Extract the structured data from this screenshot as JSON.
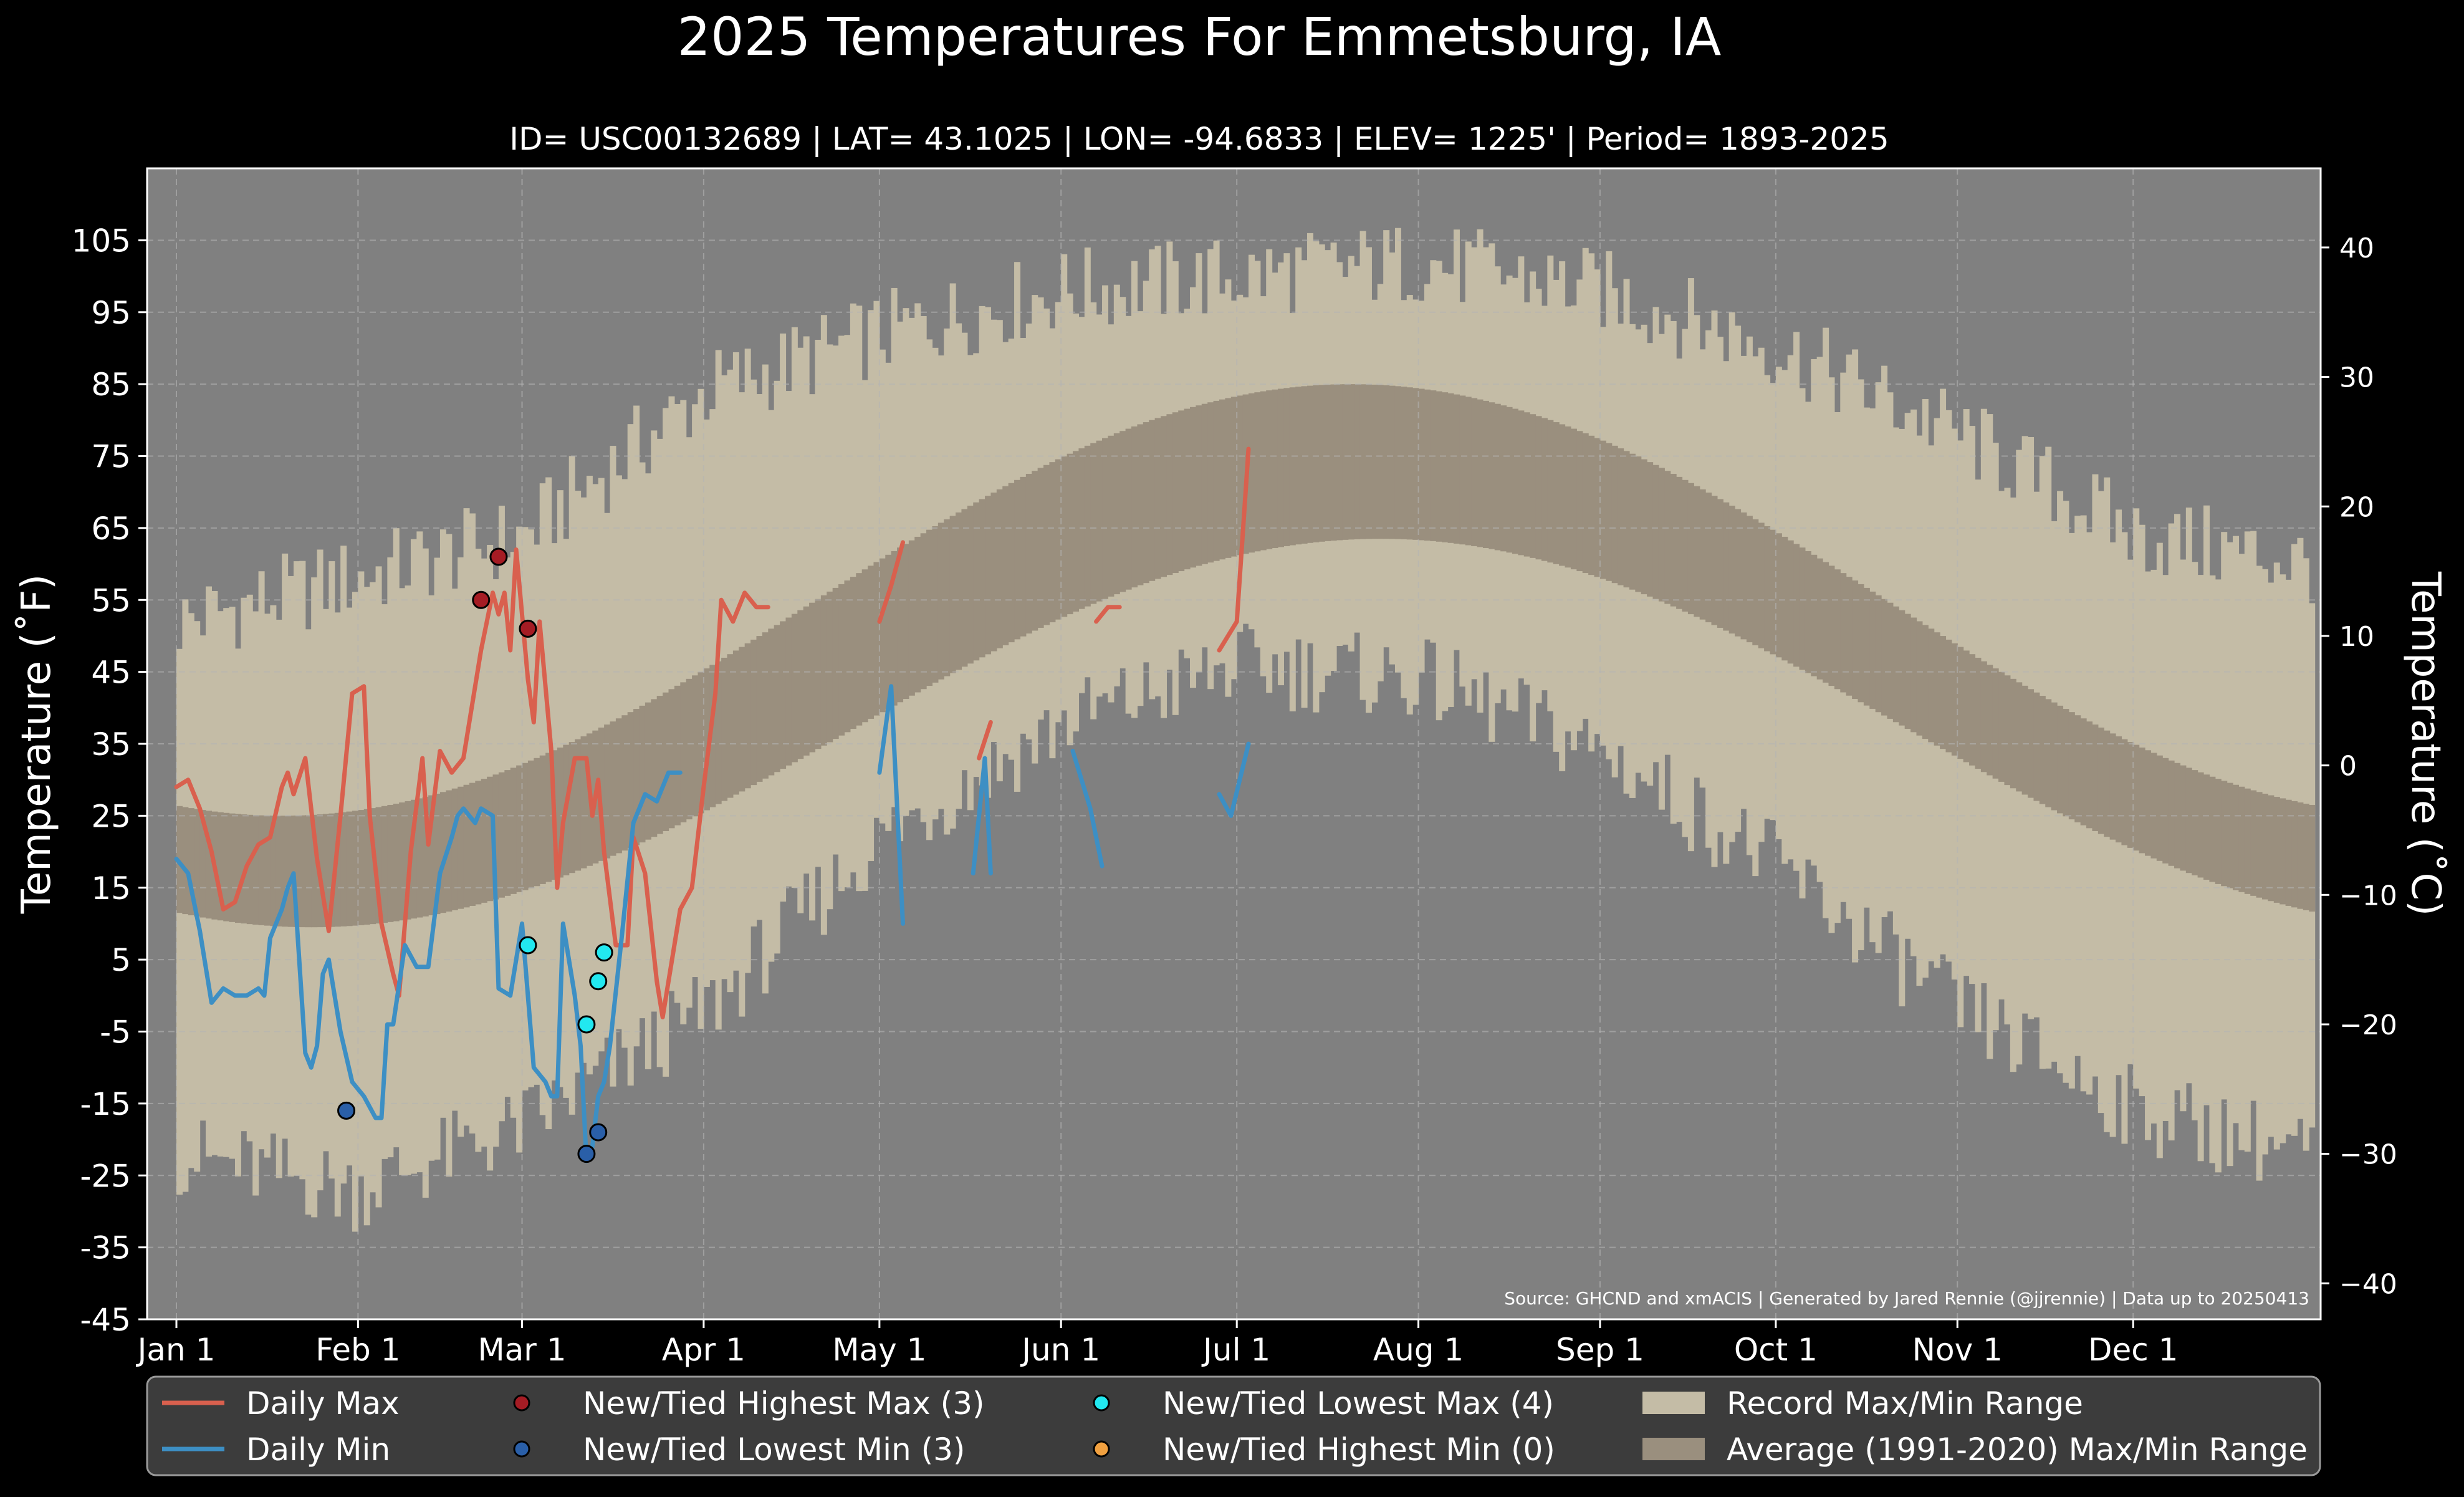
{
  "chart_data": {
    "type": "line",
    "title": "2025 Temperatures For Emmetsburg, IA",
    "subtitle": "ID= USC00132689 | LAT= 43.1025 | LON= -94.6833 | ELEV= 1225' | Period= 1893-2025",
    "ylabel_left": "Temperature ( $^\\circ$F)",
    "ylabel_left_display": "Temperature (˚F)",
    "ylabel_right_display": "Temperature (˚C)",
    "ylim_f": [
      -45,
      115
    ],
    "yticks_f": [
      "105",
      "95",
      "85",
      "75",
      "65",
      "55",
      "45",
      "35",
      "25",
      "15",
      "5",
      "-5",
      "-15",
      "-25",
      "-35",
      "-45"
    ],
    "yticks_c": [
      "40",
      "30",
      "20",
      "10",
      "0",
      "−10",
      "−20",
      "−30",
      "−40"
    ],
    "xticks": [
      "Jan 1",
      "Feb 1",
      "Mar 1",
      "Apr 1",
      "May 1",
      "Jun 1",
      "Jul 1",
      "Aug 1",
      "Sep 1",
      "Oct 1",
      "Nov 1",
      "Dec 1"
    ],
    "xlim_days": [
      -5,
      366
    ],
    "source_note": "Source: GHCND and xmACIS | Generated by Jared Rennie (@jjrennie) | Data up to 20250413",
    "grid": true,
    "legend": {
      "placement": "bottom",
      "entries": [
        {
          "label": "Daily Max",
          "kind": "line",
          "color": "#d9604e"
        },
        {
          "label": "Daily Min",
          "kind": "line",
          "color": "#3d8fc4"
        },
        {
          "label": "New/Tied Highest Max (3)",
          "kind": "marker",
          "color": "#a51c24"
        },
        {
          "label": "New/Tied Lowest Min (3)",
          "kind": "marker",
          "color": "#2a5fa8"
        },
        {
          "label": "New/Tied Lowest Max (4)",
          "kind": "marker",
          "color": "#22e8f0"
        },
        {
          "label": "New/Tied Highest Min (0)",
          "kind": "marker",
          "color": "#f0a040"
        },
        {
          "label": "Record Max/Min Range",
          "kind": "patch",
          "color": "#c4bca6"
        },
        {
          "label": "Average (1991-2020) Max/Min Range",
          "kind": "patch",
          "color": "#9a8f7e"
        }
      ]
    },
    "colors": {
      "background": "#000000",
      "plot_bg": "#808080",
      "record_range": "#c4bca6",
      "normal_range": "#9a8f7e",
      "daily_max": "#d9604e",
      "daily_min": "#3d8fc4",
      "grid": "#b4b4b4"
    },
    "record_high_anchors": [
      [
        0,
        52
      ],
      [
        30,
        58
      ],
      [
        59,
        64
      ],
      [
        90,
        84
      ],
      [
        120,
        92
      ],
      [
        151,
        98
      ],
      [
        181,
        100
      ],
      [
        212,
        102
      ],
      [
        243,
        98
      ],
      [
        273,
        90
      ],
      [
        304,
        78
      ],
      [
        334,
        64
      ],
      [
        364,
        60
      ]
    ],
    "record_low_anchors": [
      [
        0,
        -22
      ],
      [
        30,
        -27
      ],
      [
        59,
        -18
      ],
      [
        90,
        -2
      ],
      [
        120,
        22
      ],
      [
        151,
        38
      ],
      [
        181,
        46
      ],
      [
        212,
        44
      ],
      [
        243,
        34
      ],
      [
        273,
        18
      ],
      [
        304,
        -2
      ],
      [
        334,
        -16
      ],
      [
        364,
        -22
      ]
    ],
    "normal_high_formula": "55 + 30*cos(2*pi*(d-200)/365)",
    "normal_low_formula": "36.5 + 27*cos(2*pi*(d-205)/365)",
    "daily_max_segments": [
      [
        [
          0,
          29
        ],
        [
          2,
          30
        ],
        [
          4,
          26
        ],
        [
          6,
          20
        ],
        [
          8,
          12
        ],
        [
          10,
          13
        ],
        [
          12,
          18
        ],
        [
          14,
          21
        ],
        [
          16,
          22
        ],
        [
          18,
          29
        ],
        [
          19,
          31
        ],
        [
          20,
          28
        ],
        [
          22,
          33
        ],
        [
          24,
          19
        ],
        [
          26,
          9
        ],
        [
          28,
          25
        ],
        [
          30,
          42
        ],
        [
          32,
          43
        ],
        [
          33,
          25
        ],
        [
          35,
          10
        ],
        [
          37,
          3
        ],
        [
          38,
          0
        ],
        [
          39,
          10
        ],
        [
          40,
          20
        ],
        [
          42,
          33
        ],
        [
          43,
          21
        ],
        [
          45,
          34
        ],
        [
          47,
          31
        ],
        [
          49,
          33
        ],
        [
          52,
          48
        ],
        [
          53,
          52
        ],
        [
          54,
          56
        ],
        [
          55,
          53
        ],
        [
          56,
          56
        ],
        [
          57,
          48
        ],
        [
          58,
          62
        ],
        [
          60,
          44
        ],
        [
          61,
          38
        ],
        [
          62,
          52
        ],
        [
          64,
          34
        ],
        [
          65,
          15
        ],
        [
          66,
          24
        ],
        [
          68,
          33
        ],
        [
          70,
          33
        ],
        [
          71,
          25
        ],
        [
          72,
          30
        ],
        [
          73,
          20
        ],
        [
          75,
          7
        ],
        [
          77,
          7
        ],
        [
          78,
          22
        ],
        [
          80,
          17
        ],
        [
          82,
          2
        ],
        [
          83,
          -3
        ],
        [
          84,
          2
        ],
        [
          85,
          7
        ],
        [
          86,
          12
        ],
        [
          88,
          15
        ],
        [
          90,
          29
        ],
        [
          92,
          42
        ],
        [
          93,
          55
        ],
        [
          95,
          52
        ],
        [
          97,
          56
        ],
        [
          99,
          54
        ],
        [
          101,
          54
        ]
      ],
      [
        [
          120,
          52
        ],
        [
          122,
          57
        ],
        [
          124,
          63
        ]
      ],
      [
        [
          137,
          33
        ],
        [
          139,
          38
        ]
      ],
      [
        [
          157,
          52
        ],
        [
          159,
          54
        ],
        [
          161,
          54
        ]
      ],
      [
        [
          178,
          48
        ],
        [
          181,
          52
        ],
        [
          183,
          76
        ]
      ]
    ],
    "daily_min_segments": [
      [
        [
          0,
          19
        ],
        [
          2,
          17
        ],
        [
          4,
          9
        ],
        [
          6,
          -1
        ],
        [
          8,
          1
        ],
        [
          10,
          0
        ],
        [
          12,
          0
        ],
        [
          14,
          1
        ],
        [
          15,
          0
        ],
        [
          16,
          8
        ],
        [
          18,
          12
        ],
        [
          19,
          15
        ],
        [
          20,
          17
        ],
        [
          22,
          -8
        ],
        [
          23,
          -10
        ],
        [
          24,
          -7
        ],
        [
          25,
          3
        ],
        [
          26,
          5
        ],
        [
          28,
          -5
        ],
        [
          30,
          -12
        ],
        [
          32,
          -14
        ],
        [
          34,
          -17
        ],
        [
          35,
          -17
        ],
        [
          36,
          -4
        ],
        [
          37,
          -4
        ],
        [
          39,
          7
        ],
        [
          41,
          4
        ],
        [
          43,
          4
        ],
        [
          45,
          17
        ],
        [
          47,
          22
        ],
        [
          48,
          25
        ],
        [
          49,
          26
        ],
        [
          51,
          24
        ],
        [
          52,
          26
        ],
        [
          54,
          25
        ],
        [
          55,
          1
        ],
        [
          57,
          0
        ],
        [
          59,
          10
        ],
        [
          61,
          -10
        ],
        [
          63,
          -12
        ],
        [
          64,
          -14
        ],
        [
          65,
          -14
        ],
        [
          66,
          10
        ],
        [
          68,
          0
        ],
        [
          69,
          -7
        ],
        [
          70,
          -23
        ],
        [
          71,
          -21
        ],
        [
          72,
          -14
        ],
        [
          73,
          -12
        ],
        [
          74,
          -7
        ],
        [
          76,
          8
        ],
        [
          78,
          24
        ],
        [
          80,
          28
        ],
        [
          82,
          27
        ],
        [
          84,
          31
        ],
        [
          86,
          31
        ]
      ],
      [
        [
          120,
          31
        ],
        [
          122,
          43
        ],
        [
          124,
          10
        ]
      ],
      [
        [
          136,
          17
        ],
        [
          138,
          33
        ],
        [
          139,
          17
        ]
      ],
      [
        [
          153,
          34
        ],
        [
          156,
          26
        ],
        [
          158,
          18
        ]
      ],
      [
        [
          178,
          28
        ],
        [
          180,
          25
        ],
        [
          183,
          35
        ]
      ]
    ],
    "record_high_max_points": [
      [
        52,
        55
      ],
      [
        55,
        61
      ],
      [
        60,
        51
      ]
    ],
    "record_low_min_points": [
      [
        29,
        -16
      ],
      [
        70,
        -22
      ],
      [
        72,
        -19
      ]
    ],
    "record_low_max_points": [
      [
        60,
        7
      ],
      [
        70,
        -4
      ],
      [
        72,
        2
      ],
      [
        73,
        6
      ]
    ],
    "record_high_min_points": []
  }
}
